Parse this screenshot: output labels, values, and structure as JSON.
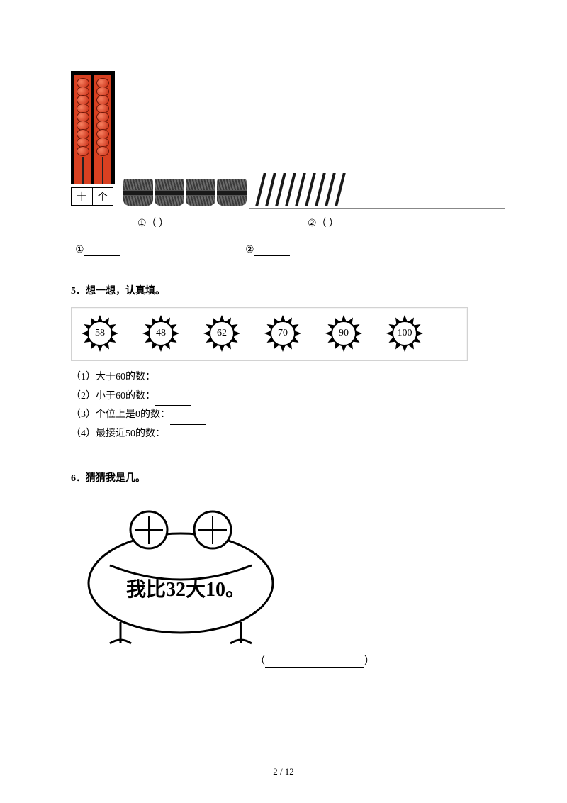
{
  "q4": {
    "abacus": {
      "rods": [
        {
          "beads": 9
        },
        {
          "beads": 9
        }
      ],
      "bead_color_inner": "#f68060",
      "bead_color_outer": "#c62810",
      "frame_color": "#000000",
      "rod_bg": "#d84021",
      "place_labels": [
        "十",
        "个"
      ]
    },
    "bundles": {
      "count": 4,
      "color": "#3a3a3a"
    },
    "loose_sticks": {
      "count": 9,
      "color": "#1a1a1a"
    },
    "under_labels": {
      "one": "①（ ）",
      "two": "②（ ）"
    },
    "answers": {
      "one": "①",
      "two": "②"
    }
  },
  "q5": {
    "title": "5．想一想，认真填。",
    "sun_values": [
      "58",
      "48",
      "62",
      "70",
      "90",
      "100"
    ],
    "sun_border_color": "#000000",
    "sun_ray_count": 12,
    "box_border_color": "#d2d2d2",
    "items": [
      "（1）大于60的数：",
      "（2）小于60的数：",
      "（3）个位上是0的数：",
      "（4）最接近50的数："
    ]
  },
  "q6": {
    "title": "6．猜猜我是几。",
    "frog_text": "我比32大10。",
    "frog_outline_color": "#000000",
    "frog_fill": "#ffffff",
    "text_font": "KaiTi",
    "text_fontsize": 28
  },
  "page": {
    "number": "2 / 12"
  },
  "colors": {
    "page_bg": "#ffffff",
    "text": "#000000"
  }
}
